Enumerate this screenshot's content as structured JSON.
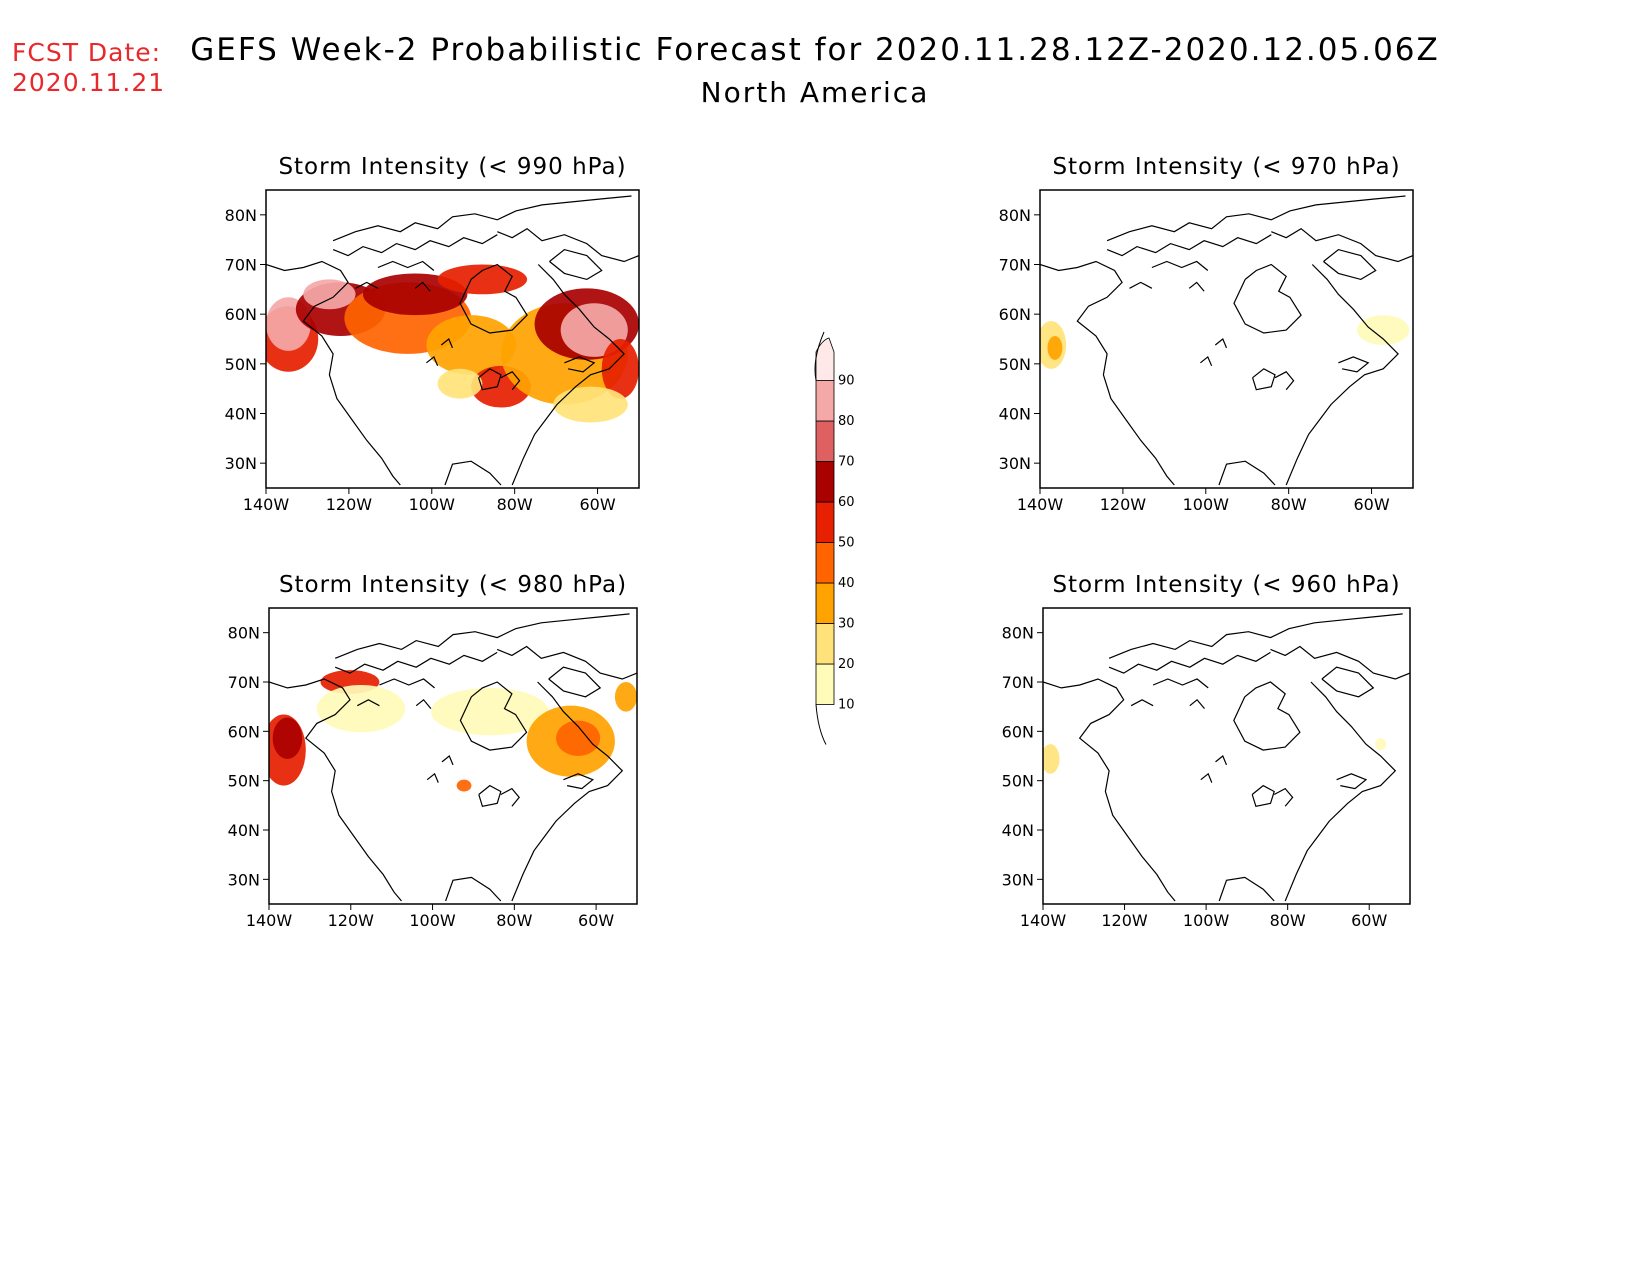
{
  "fcst": {
    "label": "FCST Date:",
    "date": "2020.11.21"
  },
  "title": "GEFS Week-2 Probabilistic Forecast for 2020.11.28.12Z-2020.12.05.06Z",
  "subtitle": "North America",
  "lat_labels": [
    "80N",
    "70N",
    "60N",
    "50N",
    "40N",
    "30N"
  ],
  "lon_labels": [
    "140W",
    "120W",
    "100W",
    "80W",
    "60W"
  ],
  "colorbar": {
    "levels": [
      10,
      20,
      30,
      40,
      50,
      60,
      70,
      80,
      90
    ],
    "colors": [
      "#fffbb8",
      "#ffe37a",
      "#ffa300",
      "#ff6400",
      "#e62000",
      "#a90000",
      "#de6060",
      "#f4a8a8",
      "#ffe8e8"
    ]
  },
  "chart_data": [
    {
      "type": "heatmap",
      "title": "Storm Intensity (< 990 hPa)",
      "ylim": [
        25,
        85
      ],
      "xlim": [
        -140,
        -50
      ],
      "extent": "widespread, max >90 over Pacific NW and Labrador"
    },
    {
      "type": "heatmap",
      "title": "Storm Intensity (< 970 hPa)",
      "ylim": [
        25,
        85
      ],
      "xlim": [
        -140,
        -50
      ],
      "extent": "10-30 near BC coast and Newfoundland"
    },
    {
      "type": "heatmap",
      "title": "Storm Intensity (< 980 hPa)",
      "ylim": [
        25,
        85
      ],
      "xlim": [
        -140,
        -50
      ],
      "extent": "up to 60 near BC coast and Labrador"
    },
    {
      "type": "heatmap",
      "title": "Storm Intensity (< 960 hPa)",
      "ylim": [
        25,
        85
      ],
      "xlim": [
        -140,
        -50
      ],
      "extent": "10-20 small spots"
    }
  ]
}
